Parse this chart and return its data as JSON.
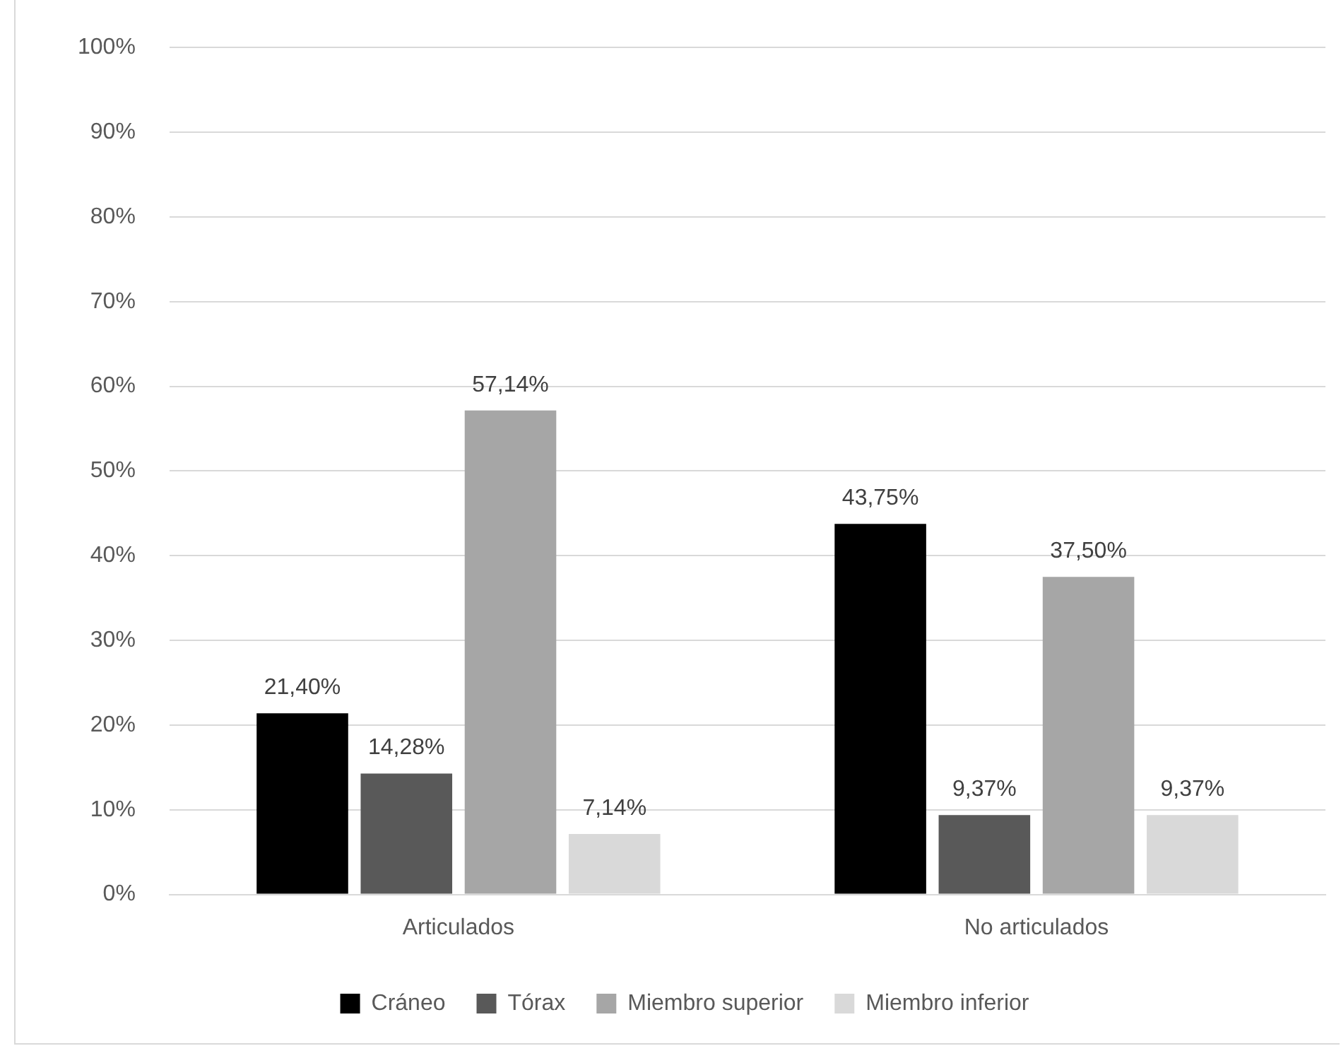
{
  "chart_data": {
    "type": "bar",
    "categories": [
      "Articulados",
      "No articulados"
    ],
    "series": [
      {
        "name": "Cráneo",
        "color": "#000000",
        "values": [
          21.4,
          43.75
        ],
        "value_labels": [
          "21,40%",
          "43,75%"
        ]
      },
      {
        "name": "Tórax",
        "color": "#595959",
        "values": [
          14.28,
          9.37
        ],
        "value_labels": [
          "14,28%",
          "9,37%"
        ]
      },
      {
        "name": "Miembro superior",
        "color": "#a6a6a6",
        "values": [
          57.14,
          37.5
        ],
        "value_labels": [
          "57,14%",
          "37,50%"
        ]
      },
      {
        "name": "Miembro inferior",
        "color": "#d9d9d9",
        "values": [
          7.14,
          9.37
        ],
        "value_labels": [
          "7,14%",
          "9,37%"
        ]
      }
    ],
    "ylim": [
      0,
      100
    ],
    "yticks": [
      {
        "value": 0,
        "label": "0%"
      },
      {
        "value": 10,
        "label": "10%"
      },
      {
        "value": 20,
        "label": "20%"
      },
      {
        "value": 30,
        "label": "30%"
      },
      {
        "value": 40,
        "label": "40%"
      },
      {
        "value": 50,
        "label": "50%"
      },
      {
        "value": 60,
        "label": "60%"
      },
      {
        "value": 70,
        "label": "70%"
      },
      {
        "value": 80,
        "label": "80%"
      },
      {
        "value": 90,
        "label": "90%"
      },
      {
        "value": 100,
        "label": "100%"
      }
    ],
    "grid": "y",
    "legend": "bottom"
  }
}
